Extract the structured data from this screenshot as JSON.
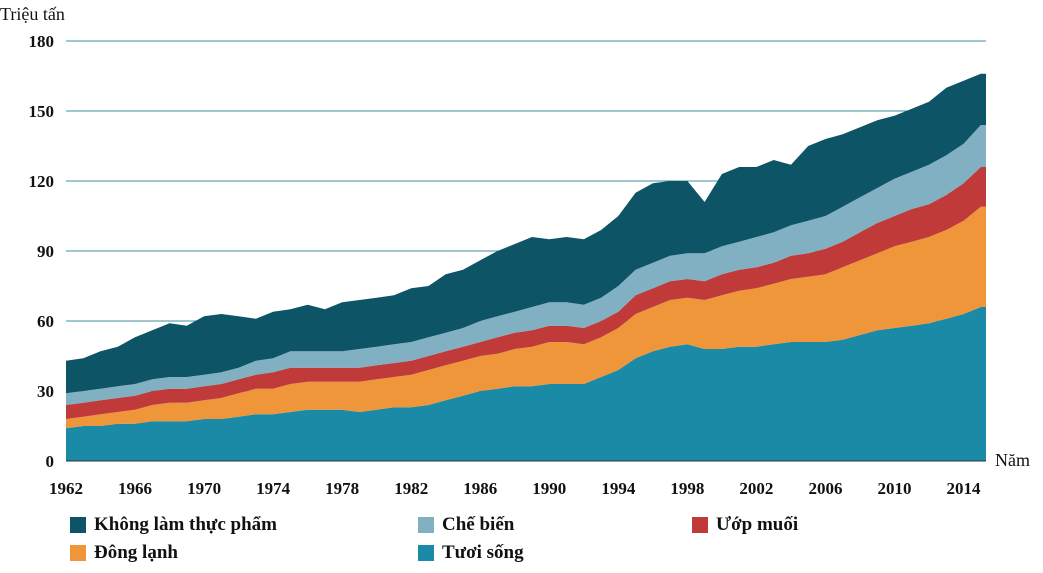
{
  "chart_data": {
    "type": "area",
    "stacked": true,
    "ylabel": "Triệu tấn",
    "xlabel": "Năm",
    "ylim": [
      0,
      180
    ],
    "yticks": [
      0,
      30,
      60,
      90,
      120,
      150,
      180
    ],
    "xticks": [
      1962,
      1966,
      1970,
      1974,
      1978,
      1982,
      1986,
      1990,
      1994,
      1998,
      2002,
      2006,
      2010,
      2014
    ],
    "xlim": [
      1962,
      2015.3
    ],
    "grid": true,
    "legend_position": "bottom",
    "x": [
      1962,
      1963,
      1964,
      1965,
      1966,
      1967,
      1968,
      1969,
      1970,
      1971,
      1972,
      1973,
      1974,
      1975,
      1976,
      1977,
      1978,
      1979,
      1980,
      1981,
      1982,
      1983,
      1984,
      1985,
      1986,
      1987,
      1988,
      1989,
      1990,
      1991,
      1992,
      1993,
      1994,
      1995,
      1996,
      1997,
      1998,
      1999,
      2000,
      2001,
      2002,
      2003,
      2004,
      2005,
      2006,
      2007,
      2008,
      2009,
      2010,
      2011,
      2012,
      2013,
      2014,
      2015
    ],
    "series": [
      {
        "name": "Tươi sống",
        "color": "#1a8aa6",
        "values": [
          14,
          15,
          15,
          16,
          16,
          17,
          17,
          17,
          18,
          18,
          19,
          20,
          20,
          21,
          22,
          22,
          22,
          21,
          22,
          23,
          23,
          24,
          26,
          28,
          30,
          31,
          32,
          32,
          33,
          33,
          33,
          36,
          39,
          44,
          47,
          49,
          50,
          48,
          48,
          49,
          49,
          50,
          51,
          51,
          51,
          52,
          54,
          56,
          57,
          58,
          59,
          61,
          63,
          66
        ]
      },
      {
        "name": "Đông lạnh",
        "color": "#f0963a",
        "values": [
          4,
          4,
          5,
          5,
          6,
          7,
          8,
          8,
          8,
          9,
          10,
          11,
          11,
          12,
          12,
          12,
          12,
          13,
          13,
          13,
          14,
          15,
          15,
          15,
          15,
          15,
          16,
          17,
          18,
          18,
          17,
          17,
          18,
          19,
          19,
          20,
          20,
          21,
          23,
          24,
          25,
          26,
          27,
          28,
          29,
          31,
          32,
          33,
          35,
          36,
          37,
          38,
          40,
          43
        ]
      },
      {
        "name": "Ướp muối",
        "color": "#c13a3a",
        "values": [
          6,
          6,
          6,
          6,
          6,
          6,
          6,
          6,
          6,
          6,
          6,
          6,
          7,
          7,
          6,
          6,
          6,
          6,
          6,
          6,
          6,
          6,
          6,
          6,
          6,
          7,
          7,
          7,
          7,
          7,
          7,
          7,
          7,
          8,
          8,
          8,
          8,
          8,
          9,
          9,
          9,
          9,
          10,
          10,
          11,
          11,
          12,
          13,
          13,
          14,
          14,
          15,
          16,
          17
        ]
      },
      {
        "name": "Chế biến",
        "color": "#80b0c2",
        "values": [
          5,
          5,
          5,
          5,
          5,
          5,
          5,
          5,
          5,
          5,
          5,
          6,
          6,
          7,
          7,
          7,
          7,
          8,
          8,
          8,
          8,
          8,
          8,
          8,
          9,
          9,
          9,
          10,
          10,
          10,
          10,
          10,
          11,
          11,
          11,
          11,
          11,
          12,
          12,
          12,
          13,
          13,
          13,
          14,
          14,
          15,
          15,
          15,
          16,
          16,
          17,
          17,
          17,
          18
        ]
      },
      {
        "name": "Không làm thực phẩm",
        "color": "#0d5466",
        "values": [
          14,
          14,
          16,
          17,
          20,
          21,
          23,
          22,
          25,
          25,
          22,
          18,
          20,
          18,
          20,
          18,
          21,
          21,
          21,
          21,
          23,
          22,
          25,
          25,
          26,
          28,
          29,
          30,
          27,
          28,
          28,
          29,
          30,
          33,
          34,
          32,
          31,
          22,
          31,
          32,
          30,
          31,
          26,
          32,
          33,
          31,
          30,
          29,
          27,
          27,
          27,
          29,
          27,
          22
        ]
      }
    ]
  }
}
